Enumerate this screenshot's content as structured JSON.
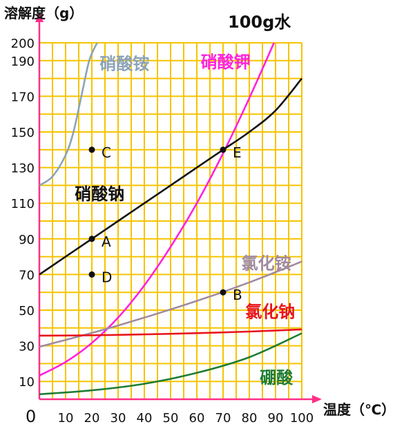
{
  "chart_data": {
    "type": "line",
    "title": "100g水",
    "ylabel": "溶解度（g）",
    "xlabel": "温度（℃）",
    "origin_label": "0",
    "xlim": [
      0,
      100
    ],
    "ylim": [
      0,
      200
    ],
    "grid": true,
    "x_ticks": [
      10,
      20,
      30,
      40,
      50,
      60,
      70,
      80,
      90,
      100
    ],
    "y_ticks": [
      10,
      30,
      50,
      70,
      90,
      110,
      130,
      150,
      170,
      190,
      200
    ],
    "series": [
      {
        "name": "硝酸铵",
        "color": "#8BA3B8",
        "points": [
          [
            0,
            120
          ],
          [
            5,
            125
          ],
          [
            10,
            137
          ],
          [
            13,
            150
          ],
          [
            16,
            170
          ],
          [
            19,
            190
          ],
          [
            22,
            200
          ]
        ],
        "label_at": [
          23,
          185
        ]
      },
      {
        "name": "硝酸钾",
        "color": "#FF22DD",
        "points": [
          [
            0,
            13.3
          ],
          [
            10,
            20.9
          ],
          [
            20,
            31.6
          ],
          [
            30,
            45.8
          ],
          [
            40,
            63.9
          ],
          [
            50,
            85.5
          ],
          [
            60,
            110
          ],
          [
            70,
            138
          ],
          [
            80,
            169
          ],
          [
            90,
            202
          ]
        ],
        "label_at": [
          61.5,
          186
        ]
      },
      {
        "name": "硝酸钠",
        "color": "#111111",
        "points": [
          [
            0,
            70
          ],
          [
            10,
            80
          ],
          [
            20,
            90
          ],
          [
            30,
            100
          ],
          [
            40,
            110
          ],
          [
            50,
            120
          ],
          [
            60,
            130
          ],
          [
            70,
            140
          ],
          [
            80,
            150
          ],
          [
            90,
            162
          ],
          [
            100,
            180
          ]
        ],
        "label_at": [
          13.5,
          112
        ]
      },
      {
        "name": "氯化铵",
        "color": "#A08AA0",
        "points": [
          [
            0,
            29.4
          ],
          [
            10,
            33.3
          ],
          [
            20,
            37.2
          ],
          [
            30,
            41.4
          ],
          [
            40,
            45.8
          ],
          [
            50,
            50.4
          ],
          [
            60,
            55.2
          ],
          [
            70,
            60.2
          ],
          [
            80,
            65.6
          ],
          [
            90,
            71.3
          ],
          [
            100,
            77.3
          ]
        ],
        "label_at": [
          77,
          73
        ]
      },
      {
        "name": "氯化钠",
        "color": "#E8141C",
        "points": [
          [
            0,
            35.7
          ],
          [
            20,
            35.9
          ],
          [
            40,
            36.4
          ],
          [
            60,
            37.1
          ],
          [
            80,
            38.0
          ],
          [
            100,
            39.2
          ]
        ],
        "label_at": [
          78.5,
          46
        ]
      },
      {
        "name": "硼酸",
        "color": "#1E7D34",
        "points": [
          [
            0,
            2.8
          ],
          [
            20,
            5.0
          ],
          [
            40,
            8.7
          ],
          [
            60,
            14.8
          ],
          [
            80,
            23.6
          ],
          [
            100,
            37.0
          ]
        ],
        "label_at": [
          84,
          9
        ]
      }
    ],
    "points": [
      {
        "label": "A",
        "x": 20,
        "y": 90
      },
      {
        "label": "B",
        "x": 70,
        "y": 60
      },
      {
        "label": "C",
        "x": 20,
        "y": 140
      },
      {
        "label": "D",
        "x": 20,
        "y": 70
      },
      {
        "label": "E",
        "x": 70,
        "y": 140
      }
    ]
  }
}
